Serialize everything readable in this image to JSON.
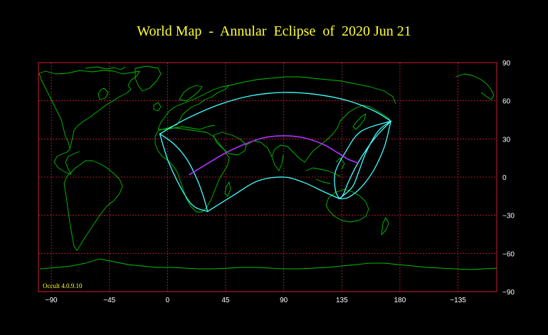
{
  "title": "World Map  -  Annular  Eclipse  of  2020 Jun 21",
  "software_version": "Occult 4.0.9.10",
  "axes": {
    "x_ticks": [
      "−90",
      "−45",
      "0",
      "45",
      "90",
      "135",
      "180",
      "−135"
    ],
    "y_ticks": [
      "90",
      "60",
      "30",
      "0",
      "−30",
      "−60",
      "−90"
    ]
  },
  "colors": {
    "background": "#000000",
    "grid": "#d21e32",
    "coastline": "#00c000",
    "eclipse_limits": "#40ffff",
    "central_line": "#b030ff",
    "title": "#ffff33",
    "tick_labels": "#ffffff"
  },
  "map": {
    "projection": "equirectangular",
    "lon_range": [
      -100,
      255
    ],
    "lat_range": [
      -90,
      90
    ],
    "center_lon": 80
  },
  "eclipse": {
    "central_line_lonlat": [
      [
        17,
        2
      ],
      [
        30,
        10
      ],
      [
        45,
        19
      ],
      [
        60,
        26
      ],
      [
        75,
        31
      ],
      [
        90,
        32.5
      ],
      [
        105,
        31
      ],
      [
        120,
        26
      ],
      [
        132,
        19
      ],
      [
        140,
        14
      ],
      [
        148,
        11
      ]
    ],
    "partial_outer_north_lonlat": [
      [
        -6,
        34
      ],
      [
        15,
        46
      ],
      [
        40,
        57
      ],
      [
        65,
        64
      ],
      [
        90,
        66.5
      ],
      [
        115,
        65
      ],
      [
        140,
        60
      ],
      [
        160,
        52
      ],
      [
        173,
        44
      ]
    ],
    "partial_inner_south_lonlat": [
      [
        31,
        -27
      ],
      [
        50,
        -15
      ],
      [
        70,
        -3
      ],
      [
        90,
        0
      ],
      [
        105,
        -4
      ],
      [
        120,
        -11
      ],
      [
        133,
        -17
      ]
    ],
    "west_limb_a_lonlat": [
      [
        -6,
        34
      ],
      [
        0,
        14
      ],
      [
        8,
        -4
      ],
      [
        16,
        -18
      ],
      [
        22,
        -24
      ],
      [
        31,
        -27
      ]
    ],
    "west_limb_b_lonlat": [
      [
        -6,
        34
      ],
      [
        5,
        26
      ],
      [
        15,
        14
      ],
      [
        23,
        -2
      ],
      [
        28,
        -16
      ],
      [
        31,
        -27
      ]
    ],
    "east_limb_a_lonlat": [
      [
        173,
        44
      ],
      [
        160,
        30
      ],
      [
        148,
        12
      ],
      [
        140,
        -4
      ],
      [
        136,
        -14
      ],
      [
        133,
        -17
      ]
    ],
    "east_limb_b_lonlat": [
      [
        173,
        44
      ],
      [
        168,
        24
      ],
      [
        160,
        6
      ],
      [
        150,
        -8
      ],
      [
        140,
        -16
      ],
      [
        133,
        -17
      ]
    ],
    "east_limb_c_lonlat": [
      [
        173,
        44
      ],
      [
        150,
        36
      ],
      [
        138,
        20
      ],
      [
        130,
        4
      ],
      [
        130,
        -10
      ],
      [
        133,
        -17
      ]
    ],
    "east_limb_d_lonlat": [
      [
        173,
        44
      ],
      [
        163,
        36
      ],
      [
        154,
        20
      ],
      [
        148,
        4
      ],
      [
        143,
        -8
      ],
      [
        133,
        -17
      ]
    ]
  }
}
